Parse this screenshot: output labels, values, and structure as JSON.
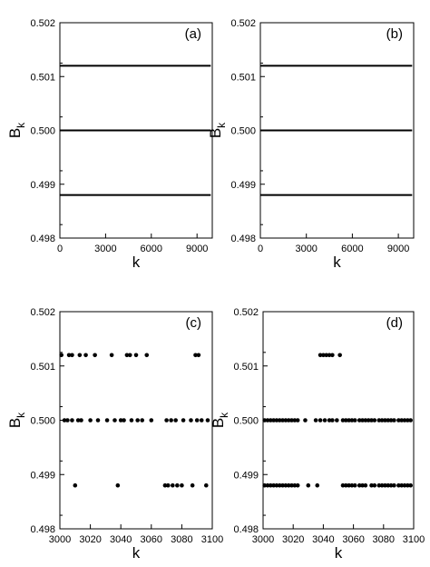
{
  "chart_data": [
    {
      "type": "line",
      "panel_label": "(a)",
      "xlabel": "k",
      "ylabel": "B",
      "ylabel_subscript": "k",
      "xlim": [
        0,
        10000
      ],
      "ylim": [
        0.498,
        0.502
      ],
      "x_ticks": [
        0,
        3000,
        6000,
        9000
      ],
      "x_tick_labels": [
        "0",
        "3000",
        "6000",
        "9000"
      ],
      "y_ticks": [
        0.498,
        0.499,
        0.5,
        0.501,
        0.502
      ],
      "y_tick_labels": [
        "0.498",
        "0.499",
        "0.500",
        "0.501",
        "0.502"
      ],
      "grid": false,
      "legend": "none",
      "series": [
        {
          "x": [
            0,
            9900
          ],
          "values": [
            0.5012,
            0.5012
          ]
        },
        {
          "x": [
            0,
            9900
          ],
          "values": [
            0.5,
            0.5
          ]
        },
        {
          "x": [
            0,
            9900
          ],
          "values": [
            0.4988,
            0.4988
          ]
        }
      ]
    },
    {
      "type": "line",
      "panel_label": "(b)",
      "xlabel": "k",
      "ylabel": "B",
      "ylabel_subscript": "k",
      "xlim": [
        0,
        10000
      ],
      "ylim": [
        0.498,
        0.502
      ],
      "x_ticks": [
        0,
        3000,
        6000,
        9000
      ],
      "x_tick_labels": [
        "0",
        "3000",
        "6000",
        "9000"
      ],
      "y_ticks": [
        0.498,
        0.499,
        0.5,
        0.501,
        0.502
      ],
      "y_tick_labels": [
        "0.498",
        "0.499",
        "0.500",
        "0.501",
        "0.502"
      ],
      "grid": false,
      "legend": "none",
      "series": [
        {
          "x": [
            0,
            9900
          ],
          "values": [
            0.5012,
            0.5012
          ]
        },
        {
          "x": [
            0,
            9900
          ],
          "values": [
            0.5,
            0.5
          ]
        },
        {
          "x": [
            0,
            9900
          ],
          "values": [
            0.4988,
            0.4988
          ]
        }
      ]
    },
    {
      "type": "scatter",
      "panel_label": "(c)",
      "xlabel": "k",
      "ylabel": "B",
      "ylabel_subscript": "k",
      "xlim": [
        3000,
        3100
      ],
      "ylim": [
        0.498,
        0.502
      ],
      "x_ticks": [
        3000,
        3020,
        3040,
        3060,
        3080,
        3100
      ],
      "x_tick_labels": [
        "3000",
        "3020",
        "3040",
        "3060",
        "3080",
        "3100"
      ],
      "y_ticks": [
        0.498,
        0.499,
        0.5,
        0.501,
        0.502
      ],
      "y_tick_labels": [
        "0.498",
        "0.499",
        "0.500",
        "0.501",
        "0.502"
      ],
      "grid": false,
      "legend": "none",
      "series": [
        {
          "x": [
            3001,
            3006,
            3008,
            3013,
            3017,
            3023,
            3034,
            3044,
            3046,
            3050,
            3057,
            3089,
            3091
          ],
          "values": [
            0.5012,
            0.5012,
            0.5012,
            0.5012,
            0.5012,
            0.5012,
            0.5012,
            0.5012,
            0.5012,
            0.5012,
            0.5012,
            0.5012,
            0.5012
          ]
        },
        {
          "x": [
            3003,
            3005,
            3008,
            3012,
            3014,
            3020,
            3025,
            3031,
            3036,
            3040,
            3042,
            3047,
            3051,
            3054,
            3060,
            3070,
            3073,
            3076,
            3081,
            3086,
            3090,
            3093,
            3097
          ],
          "values": [
            0.5,
            0.5,
            0.5,
            0.5,
            0.5,
            0.5,
            0.5,
            0.5,
            0.5,
            0.5,
            0.5,
            0.5,
            0.5,
            0.5,
            0.5,
            0.5,
            0.5,
            0.5,
            0.5,
            0.5,
            0.5,
            0.5,
            0.5
          ]
        },
        {
          "x": [
            3010,
            3038,
            3069,
            3071,
            3074,
            3077,
            3080,
            3087,
            3096
          ],
          "values": [
            0.4988,
            0.4988,
            0.4988,
            0.4988,
            0.4988,
            0.4988,
            0.4988,
            0.4988,
            0.4988
          ]
        }
      ]
    },
    {
      "type": "scatter",
      "panel_label": "(d)",
      "xlabel": "k",
      "ylabel": "B",
      "ylabel_subscript": "k",
      "xlim": [
        3000,
        3100
      ],
      "ylim": [
        0.498,
        0.502
      ],
      "x_ticks": [
        3000,
        3020,
        3040,
        3060,
        3080,
        3100
      ],
      "x_tick_labels": [
        "3000",
        "3020",
        "3040",
        "3060",
        "3080",
        "3100"
      ],
      "y_ticks": [
        0.498,
        0.499,
        0.5,
        0.501,
        0.502
      ],
      "y_tick_labels": [
        "0.498",
        "0.499",
        "0.500",
        "0.501",
        "0.502"
      ],
      "grid": false,
      "legend": "none",
      "series": [
        {
          "x": [
            3038,
            3040,
            3042,
            3044,
            3046,
            3051
          ],
          "values": [
            0.5012,
            0.5012,
            0.5012,
            0.5012,
            0.5012,
            0.5012
          ]
        },
        {
          "x": [
            3001,
            3003,
            3005,
            3007,
            3009,
            3011,
            3013,
            3015,
            3017,
            3019,
            3021,
            3023,
            3028,
            3035,
            3038,
            3041,
            3044,
            3046,
            3049,
            3053,
            3055,
            3057,
            3059,
            3061,
            3064,
            3066,
            3068,
            3070,
            3072,
            3074,
            3077,
            3079,
            3081,
            3083,
            3085,
            3087,
            3090,
            3092,
            3094,
            3096,
            3098
          ],
          "values": [
            0.5,
            0.5,
            0.5,
            0.5,
            0.5,
            0.5,
            0.5,
            0.5,
            0.5,
            0.5,
            0.5,
            0.5,
            0.5,
            0.5,
            0.5,
            0.5,
            0.5,
            0.5,
            0.5,
            0.5,
            0.5,
            0.5,
            0.5,
            0.5,
            0.5,
            0.5,
            0.5,
            0.5,
            0.5,
            0.5,
            0.5,
            0.5,
            0.5,
            0.5,
            0.5,
            0.5,
            0.5,
            0.5,
            0.5,
            0.5,
            0.5
          ]
        },
        {
          "x": [
            3001,
            3003,
            3005,
            3007,
            3009,
            3011,
            3013,
            3015,
            3017,
            3019,
            3021,
            3023,
            3030,
            3036,
            3053,
            3055,
            3057,
            3059,
            3061,
            3064,
            3066,
            3068,
            3072,
            3074,
            3077,
            3079,
            3081,
            3083,
            3085,
            3087,
            3090,
            3092,
            3094,
            3096,
            3098
          ],
          "values": [
            0.4988,
            0.4988,
            0.4988,
            0.4988,
            0.4988,
            0.4988,
            0.4988,
            0.4988,
            0.4988,
            0.4988,
            0.4988,
            0.4988,
            0.4988,
            0.4988,
            0.4988,
            0.4988,
            0.4988,
            0.4988,
            0.4988,
            0.4988,
            0.4988,
            0.4988,
            0.4988,
            0.4988,
            0.4988,
            0.4988,
            0.4988,
            0.4988,
            0.4988,
            0.4988,
            0.4988,
            0.4988,
            0.4988,
            0.4988,
            0.4988
          ]
        }
      ]
    }
  ]
}
